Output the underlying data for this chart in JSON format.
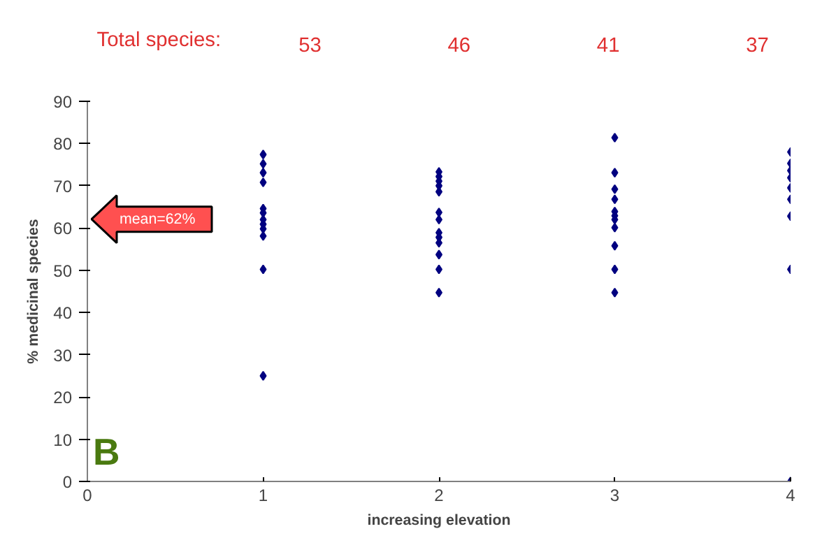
{
  "chart_data": {
    "type": "scatter",
    "xlabel": "increasing elevation",
    "ylabel": "% medicinal species",
    "x": [
      1,
      1,
      1,
      1,
      1,
      1,
      1,
      1,
      1,
      1,
      1,
      1,
      2,
      2,
      2,
      2,
      2,
      2,
      2,
      2,
      2,
      2,
      2,
      2,
      2,
      3,
      3,
      3,
      3,
      3,
      3,
      3,
      3,
      3,
      3,
      3,
      4,
      4,
      4,
      4,
      4,
      4,
      4,
      4,
      4
    ],
    "series": [
      {
        "color": "#000080",
        "values": [
          77.4,
          75.2,
          73.1,
          70.8,
          64.6,
          63.6,
          62.0,
          60.9,
          59.8,
          58.1,
          50.2,
          25.0,
          73.3,
          72.2,
          71.1,
          70.0,
          68.6,
          63.7,
          62.0,
          58.9,
          57.8,
          56.5,
          53.7,
          50.2,
          44.7,
          81.4,
          73.1,
          69.2,
          66.8,
          63.9,
          62.9,
          62.0,
          60.1,
          55.8,
          50.2,
          44.7,
          78.0,
          75.3,
          73.6,
          71.9,
          69.5,
          66.8,
          62.8,
          50.2,
          0
        ]
      }
    ],
    "xlim": [
      0,
      4
    ],
    "xticks": [
      0,
      1,
      2,
      3,
      4
    ],
    "ylim": [
      0,
      90
    ],
    "yticks": [
      0,
      10,
      20,
      30,
      40,
      50,
      60,
      70,
      80,
      90
    ],
    "marker": "diamond",
    "grid": false,
    "annotations": [
      "Total species:",
      "53",
      "46",
      "41",
      "37",
      "mean=62%",
      "B"
    ]
  }
}
